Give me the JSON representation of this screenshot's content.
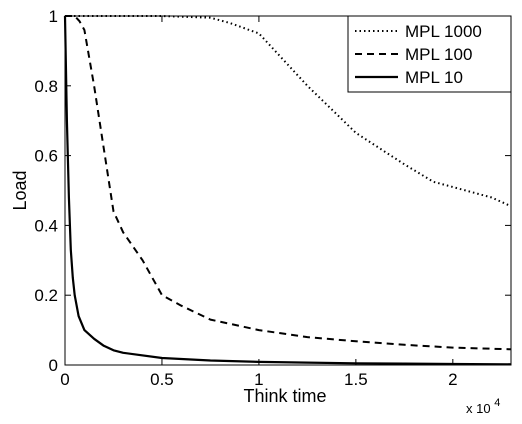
{
  "chart_data": {
    "type": "line",
    "title": "",
    "xlabel": "Think time",
    "ylabel": "Load",
    "x_multiplier_label": "x 10",
    "x_multiplier_exponent": "4",
    "xlim": [
      0,
      23000
    ],
    "ylim": [
      0,
      1
    ],
    "x_ticks": [
      {
        "value": 0,
        "label": "0"
      },
      {
        "value": 5000,
        "label": "0.5"
      },
      {
        "value": 10000,
        "label": "1"
      },
      {
        "value": 15000,
        "label": "1.5"
      },
      {
        "value": 20000,
        "label": "2"
      }
    ],
    "y_ticks": [
      {
        "value": 0,
        "label": "0"
      },
      {
        "value": 0.2,
        "label": "0.2"
      },
      {
        "value": 0.4,
        "label": "0.4"
      },
      {
        "value": 0.6,
        "label": "0.6"
      },
      {
        "value": 0.8,
        "label": "0.8"
      },
      {
        "value": 1,
        "label": "1"
      }
    ],
    "grid": false,
    "legend_position": "top-right",
    "series": [
      {
        "name": "MPL 1000",
        "style": "dotted",
        "color": "#000000",
        "x": [
          0,
          2500,
          5000,
          7500,
          8500,
          10000,
          12500,
          15000,
          17500,
          19000,
          20000,
          22000,
          23000
        ],
        "y": [
          1.0,
          1.0,
          1.0,
          0.995,
          0.98,
          0.95,
          0.8,
          0.665,
          0.575,
          0.525,
          0.51,
          0.48,
          0.455
        ]
      },
      {
        "name": "MPL 100",
        "style": "dashed",
        "color": "#000000",
        "x": [
          0,
          500,
          750,
          1000,
          1500,
          2000,
          2500,
          3000,
          4000,
          5000,
          6000,
          7500,
          10000,
          12500,
          15000,
          17500,
          20000,
          23000
        ],
        "y": [
          1.0,
          1.0,
          0.985,
          0.96,
          0.8,
          0.62,
          0.44,
          0.38,
          0.3,
          0.2,
          0.17,
          0.13,
          0.1,
          0.08,
          0.068,
          0.058,
          0.05,
          0.045
        ]
      },
      {
        "name": "MPL 10",
        "style": "solid",
        "color": "#000000",
        "x": [
          0,
          100,
          200,
          300,
          400,
          500,
          700,
          1000,
          1500,
          2000,
          2500,
          3000,
          5000,
          7500,
          10000,
          12500,
          15000,
          17500,
          20000,
          23000
        ],
        "y": [
          1.0,
          0.7,
          0.48,
          0.33,
          0.25,
          0.2,
          0.14,
          0.1,
          0.075,
          0.055,
          0.042,
          0.035,
          0.02,
          0.013,
          0.009,
          0.007,
          0.005,
          0.004,
          0.003,
          0.002
        ]
      }
    ]
  }
}
